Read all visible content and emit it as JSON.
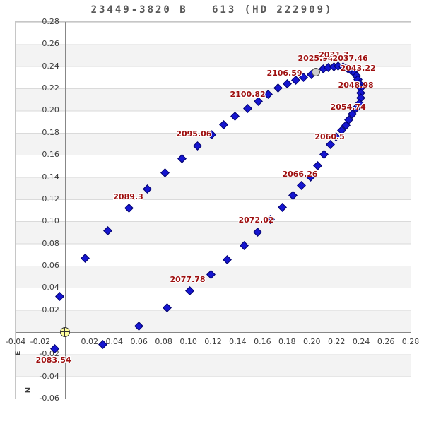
{
  "title": "23449-3820 B   613 (HD 222909)",
  "colors": {
    "title": "#595959",
    "tick": "#3c3c3c",
    "border": "#c6c6c6",
    "grid_band": "#f3f3f3",
    "grid_line": "#dadada",
    "axis_line": "#878787",
    "point_fill": "#1515d0",
    "point_border": "#000066",
    "year_label": "#9e1010",
    "epoch_fill": "#cccccc",
    "epoch_border": "#444444",
    "origin_fill": "#ffff9c",
    "origin_border": "#333333"
  },
  "chart_data": {
    "type": "scatter",
    "title": "23449-3820 B   613 (HD 222909)",
    "description": "Visual binary orbit plot: separation in arcsec, companion positions relative to primary star at origin",
    "x_direction_label": "E",
    "y_direction_label": "N",
    "xlim": [
      -0.04,
      0.28
    ],
    "ylim": [
      -0.06,
      0.28
    ],
    "grid": true,
    "x_ticks": [
      -0.04,
      -0.02,
      0.02,
      0.04,
      0.06,
      0.08,
      0.1,
      0.12,
      0.14,
      0.16,
      0.18,
      0.2,
      0.22,
      0.24,
      0.26,
      0.28
    ],
    "y_ticks": [
      0.28,
      0.26,
      0.24,
      0.22,
      0.2,
      0.18,
      0.16,
      0.14,
      0.12,
      0.1,
      0.08,
      0.06,
      0.04,
      0.02,
      -0.02,
      -0.04,
      -0.06
    ],
    "points": [
      [
        -0.008,
        -0.0152
      ],
      [
        -0.004,
        0.0324
      ],
      [
        0.0166,
        0.0667
      ],
      [
        0.0349,
        0.0914
      ],
      [
        0.0521,
        0.1117
      ],
      [
        0.067,
        0.1289
      ],
      [
        0.0813,
        0.1441
      ],
      [
        0.0945,
        0.1568
      ],
      [
        0.1071,
        0.1683
      ],
      [
        0.1186,
        0.1784
      ],
      [
        0.1283,
        0.1873
      ],
      [
        0.1376,
        0.1951
      ],
      [
        0.1482,
        0.2019
      ],
      [
        0.1567,
        0.2083
      ],
      [
        0.1644,
        0.2148
      ],
      [
        0.1724,
        0.2203
      ],
      [
        0.1798,
        0.2241
      ],
      [
        0.1867,
        0.2273
      ],
      [
        0.1935,
        0.2298
      ],
      [
        0.1993,
        0.2324
      ],
      [
        0.209,
        0.2375
      ],
      [
        0.2131,
        0.2387
      ],
      [
        0.2176,
        0.2394
      ],
      [
        0.2211,
        0.24
      ],
      [
        0.2251,
        0.2394
      ],
      [
        0.2285,
        0.2381
      ],
      [
        0.2314,
        0.2362
      ],
      [
        0.2342,
        0.2337
      ],
      [
        0.236,
        0.2311
      ],
      [
        0.2371,
        0.2279
      ],
      [
        0.2383,
        0.2241
      ],
      [
        0.2394,
        0.2203
      ],
      [
        0.2397,
        0.2159
      ],
      [
        0.2394,
        0.2114
      ],
      [
        0.2383,
        0.2063
      ],
      [
        0.2354,
        0.2019
      ],
      [
        0.2325,
        0.1968
      ],
      [
        0.2297,
        0.1917
      ],
      [
        0.2274,
        0.1867
      ],
      [
        0.2239,
        0.1822
      ],
      [
        0.2193,
        0.1765
      ],
      [
        0.2148,
        0.1695
      ],
      [
        0.2096,
        0.1606
      ],
      [
        0.2045,
        0.1505
      ],
      [
        0.1987,
        0.1397
      ],
      [
        0.1913,
        0.1321
      ],
      [
        0.1844,
        0.1232
      ],
      [
        0.1758,
        0.1124
      ],
      [
        0.1661,
        0.1016
      ],
      [
        0.1563,
        0.0902
      ],
      [
        0.1449,
        0.0781
      ],
      [
        0.1312,
        0.0654
      ],
      [
        0.118,
        0.0521
      ],
      [
        0.1008,
        0.0375
      ],
      [
        0.0825,
        0.0222
      ],
      [
        0.0596,
        0.0057
      ],
      [
        0.0309,
        -0.0114
      ]
    ],
    "epoch_marker": {
      "x": 0.2033,
      "y": 0.2349,
      "epoch": "2025.94"
    },
    "origin_marker": {
      "x": 0.0,
      "y": 0.0
    },
    "annotations": [
      {
        "text": "2025.94",
        "x": 0.203,
        "y": 0.2466
      },
      {
        "text": "2031.7",
        "x": 0.2179,
        "y": 0.2498
      },
      {
        "text": "2037.46",
        "x": 0.2311,
        "y": 0.2466
      },
      {
        "text": "2043.22",
        "x": 0.2374,
        "y": 0.2378
      },
      {
        "text": "2048.98",
        "x": 0.2357,
        "y": 0.2229
      },
      {
        "text": "2054.74",
        "x": 0.2294,
        "y": 0.2029
      },
      {
        "text": "2060.5",
        "x": 0.2145,
        "y": 0.1762
      },
      {
        "text": "2066.26",
        "x": 0.1904,
        "y": 0.1425
      },
      {
        "text": "2072.02",
        "x": 0.1549,
        "y": 0.1006
      },
      {
        "text": "2077.78",
        "x": 0.0994,
        "y": 0.0473
      },
      {
        "text": "2083.54",
        "x": -0.0094,
        "y": -0.0257
      },
      {
        "text": "2089.3",
        "x": 0.0513,
        "y": 0.1216
      },
      {
        "text": "2095.06",
        "x": 0.1045,
        "y": 0.1787
      },
      {
        "text": "2100.82",
        "x": 0.1481,
        "y": 0.2143
      },
      {
        "text": "2106.59",
        "x": 0.1778,
        "y": 0.2333
      }
    ]
  }
}
